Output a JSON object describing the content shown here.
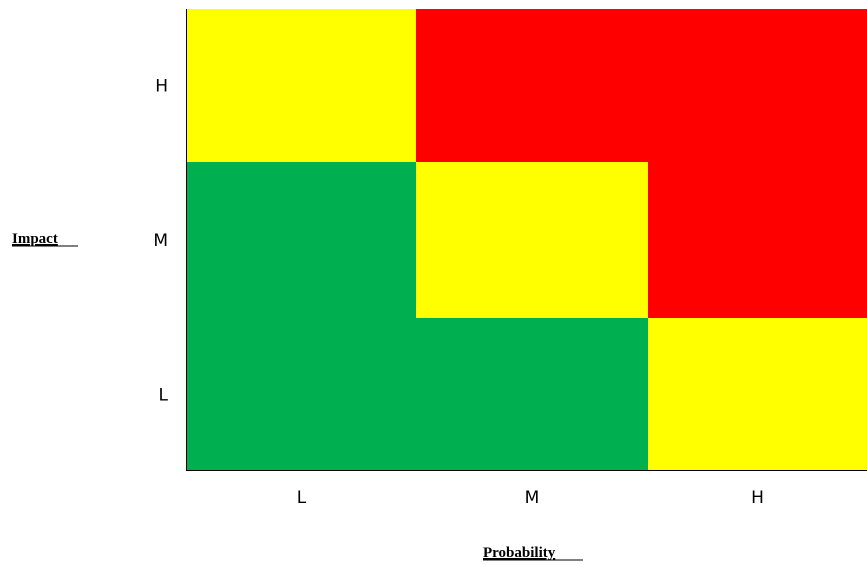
{
  "chart_data": {
    "type": "heatmap",
    "title": "",
    "xlabel": "Probability",
    "ylabel": "Impact",
    "x_categories": [
      "L",
      "M",
      "H"
    ],
    "y_categories": [
      "L",
      "M",
      "H"
    ],
    "cells": [
      {
        "x": "L",
        "y": "H",
        "color": "yellow"
      },
      {
        "x": "M",
        "y": "H",
        "color": "red"
      },
      {
        "x": "H",
        "y": "H",
        "color": "red"
      },
      {
        "x": "L",
        "y": "M",
        "color": "green"
      },
      {
        "x": "M",
        "y": "M",
        "color": "yellow"
      },
      {
        "x": "H",
        "y": "M",
        "color": "red"
      },
      {
        "x": "L",
        "y": "L",
        "color": "green"
      },
      {
        "x": "M",
        "y": "L",
        "color": "green"
      },
      {
        "x": "H",
        "y": "L",
        "color": "yellow"
      }
    ],
    "colors": {
      "red": "#ff0000",
      "yellow": "#ffff00",
      "green": "#00b050"
    },
    "grid": false,
    "legend": "none"
  }
}
